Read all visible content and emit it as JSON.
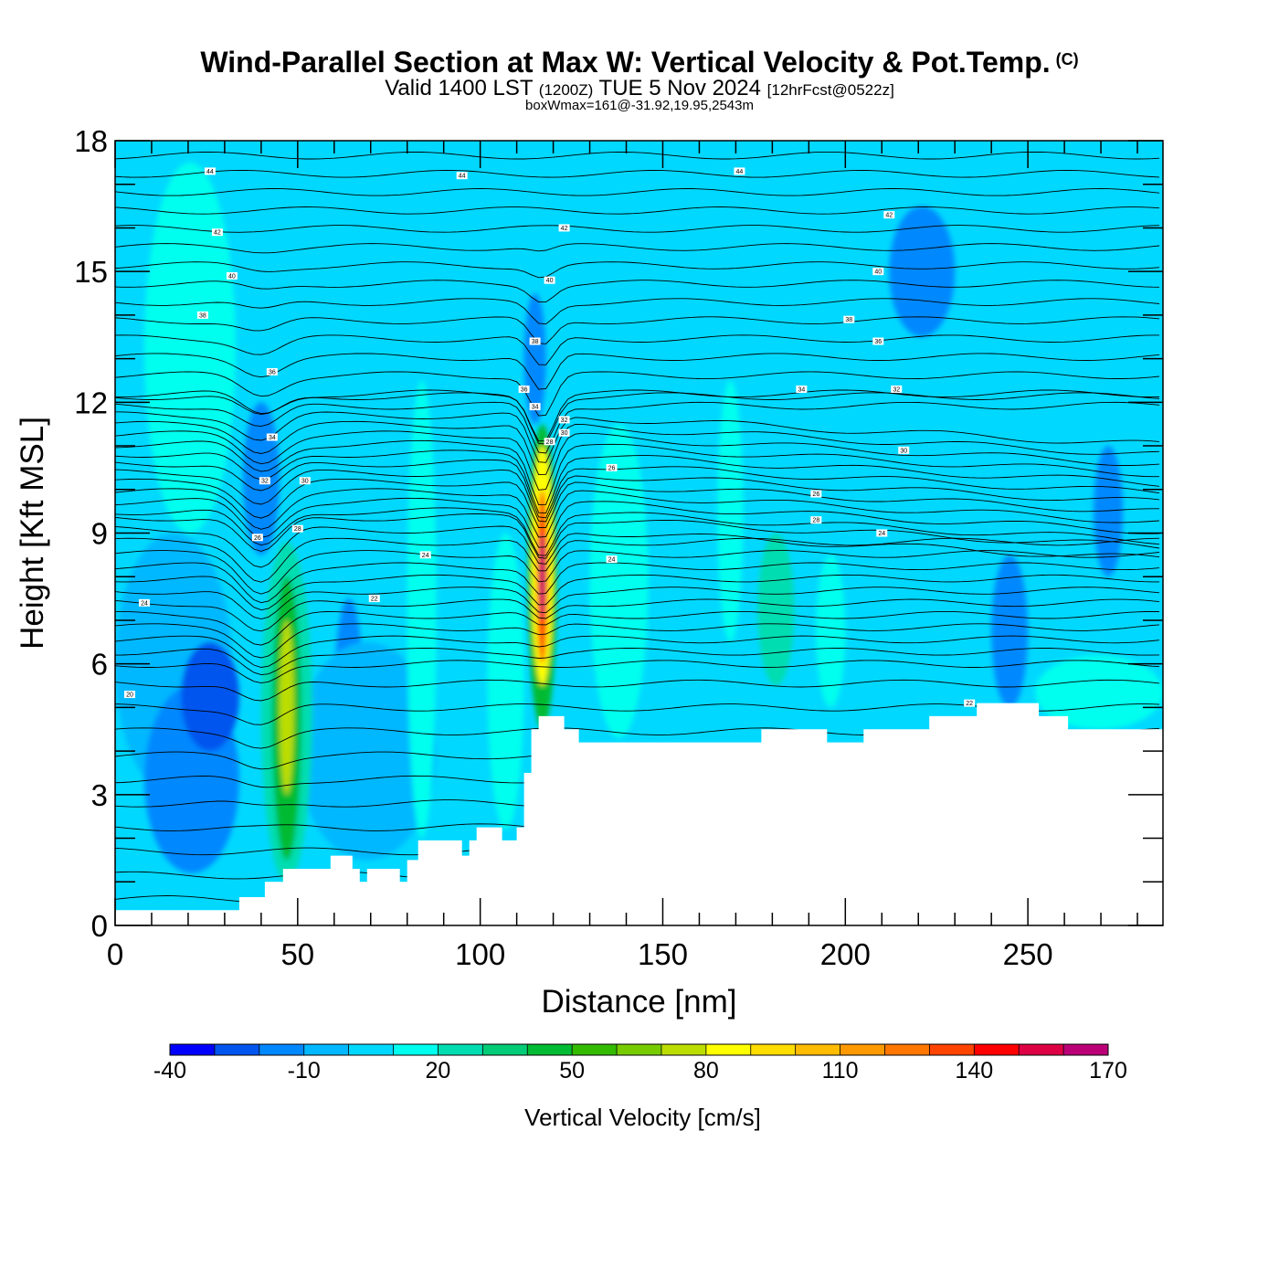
{
  "title": {
    "main": "Wind-Parallel Section at Max W: Vertical Velocity & Pot.Temp.",
    "copyright": "(C)",
    "valid_prefix": "Valid 1400 LST",
    "valid_utc": "(1200Z)",
    "valid_date": "TUE 5 Nov 2024",
    "forecast": "[12hrFcst@0522z]",
    "box_wmax": "boxWmax=161@-31.92,19.95,2543m"
  },
  "chart_data": {
    "type": "heatmap",
    "xlabel": "Distance [nm]",
    "ylabel": "Height [Kft MSL]",
    "xlim": [
      0,
      287
    ],
    "ylim": [
      0,
      18
    ],
    "x_ticks": [
      0,
      50,
      100,
      150,
      200,
      250
    ],
    "x_tick_labels": [
      "0",
      "50",
      "100",
      "150",
      "200",
      "250"
    ],
    "y_ticks": [
      0,
      3,
      6,
      9,
      12,
      15,
      18
    ],
    "y_tick_labels": [
      "0",
      "3",
      "6",
      "9",
      "12",
      "15",
      "18"
    ],
    "background_w": 0,
    "vertical_velocity_features": [
      {
        "x": [
          0,
          32
        ],
        "z": [
          3.0,
          9.0
        ],
        "w": -10
      },
      {
        "x": [
          8,
          34
        ],
        "z": [
          1.2,
          5.5
        ],
        "w": -20
      },
      {
        "x": [
          18,
          34
        ],
        "z": [
          4.0,
          6.5
        ],
        "w": -30
      },
      {
        "x": [
          35,
          45
        ],
        "z": [
          8.5,
          12.0
        ],
        "w": -20
      },
      {
        "x": [
          60,
          68
        ],
        "z": [
          3.0,
          7.5
        ],
        "w": -20
      },
      {
        "x": [
          50,
          88
        ],
        "z": [
          1.5,
          6.5
        ],
        "w": -10
      },
      {
        "x": [
          40,
          54
        ],
        "z": [
          1.0,
          8.8
        ],
        "w": 20
      },
      {
        "x": [
          43,
          51
        ],
        "z": [
          1.5,
          8.0
        ],
        "w": 40
      },
      {
        "x": [
          45,
          49
        ],
        "z": [
          3.0,
          7.0
        ],
        "w": 70
      },
      {
        "x": [
          8,
          33
        ],
        "z": [
          9.0,
          17.5
        ],
        "w": 10
      },
      {
        "x": [
          80,
          88
        ],
        "z": [
          2.0,
          12.5
        ],
        "w": 10
      },
      {
        "x": [
          102,
          112
        ],
        "z": [
          2.2,
          9.0
        ],
        "w": 10
      },
      {
        "x": [
          112,
          118
        ],
        "z": [
          11.5,
          14.5
        ],
        "w": -20
      },
      {
        "x": [
          113,
          121
        ],
        "z": [
          4.5,
          11.5
        ],
        "w": 40
      },
      {
        "x": [
          114,
          120
        ],
        "z": [
          5.5,
          11.0
        ],
        "w": 80
      },
      {
        "x": [
          115.5,
          118.5
        ],
        "z": [
          6.0,
          10.0
        ],
        "w": 130
      },
      {
        "x": [
          116.3,
          117.7
        ],
        "z": [
          7.0,
          9.0
        ],
        "w": 161
      },
      {
        "x": [
          130,
          146
        ],
        "z": [
          4.3,
          11.5
        ],
        "w": 10
      },
      {
        "x": [
          165,
          172
        ],
        "z": [
          6.5,
          12.5
        ],
        "w": 10
      },
      {
        "x": [
          176,
          186
        ],
        "z": [
          5.5,
          9.0
        ],
        "w": 20
      },
      {
        "x": [
          192,
          200
        ],
        "z": [
          5.0,
          8.5
        ],
        "w": 10
      },
      {
        "x": [
          212,
          230
        ],
        "z": [
          13.5,
          16.5
        ],
        "w": -20
      },
      {
        "x": [
          240,
          250
        ],
        "z": [
          5.0,
          8.5
        ],
        "w": -20
      },
      {
        "x": [
          268,
          276
        ],
        "z": [
          8.0,
          11.0
        ],
        "w": -20
      },
      {
        "x": [
          252,
          287
        ],
        "z": [
          4.5,
          6.2
        ],
        "w": 10
      }
    ],
    "pot_temp_contour_labels": [
      {
        "x": 4,
        "z": 5.3,
        "text": "20"
      },
      {
        "x": 8,
        "z": 7.4,
        "text": "24"
      },
      {
        "x": 85,
        "z": 8.5,
        "text": "24"
      },
      {
        "x": 136,
        "z": 10.5,
        "text": "26"
      },
      {
        "x": 71,
        "z": 7.5,
        "text": "22"
      },
      {
        "x": 39,
        "z": 8.9,
        "text": "26"
      },
      {
        "x": 50,
        "z": 9.1,
        "text": "28"
      },
      {
        "x": 41,
        "z": 10.2,
        "text": "32"
      },
      {
        "x": 52,
        "z": 10.2,
        "text": "30"
      },
      {
        "x": 43,
        "z": 11.2,
        "text": "34"
      },
      {
        "x": 43,
        "z": 12.7,
        "text": "36"
      },
      {
        "x": 24,
        "z": 14.0,
        "text": "38"
      },
      {
        "x": 32,
        "z": 14.9,
        "text": "40"
      },
      {
        "x": 28,
        "z": 15.9,
        "text": "42"
      },
      {
        "x": 26,
        "z": 17.3,
        "text": "44"
      },
      {
        "x": 95,
        "z": 17.2,
        "text": "44"
      },
      {
        "x": 171,
        "z": 17.3,
        "text": "44"
      },
      {
        "x": 123,
        "z": 16.0,
        "text": "42"
      },
      {
        "x": 212,
        "z": 16.3,
        "text": "42"
      },
      {
        "x": 119,
        "z": 14.8,
        "text": "40"
      },
      {
        "x": 209,
        "z": 15.0,
        "text": "40"
      },
      {
        "x": 115,
        "z": 13.4,
        "text": "38"
      },
      {
        "x": 201,
        "z": 13.9,
        "text": "38"
      },
      {
        "x": 209,
        "z": 13.4,
        "text": "36"
      },
      {
        "x": 112,
        "z": 12.3,
        "text": "36"
      },
      {
        "x": 115,
        "z": 11.9,
        "text": "34"
      },
      {
        "x": 188,
        "z": 12.3,
        "text": "34"
      },
      {
        "x": 214,
        "z": 12.3,
        "text": "32"
      },
      {
        "x": 123,
        "z": 11.6,
        "text": "32"
      },
      {
        "x": 123,
        "z": 11.3,
        "text": "30"
      },
      {
        "x": 119,
        "z": 11.1,
        "text": "28"
      },
      {
        "x": 216,
        "z": 10.9,
        "text": "30"
      },
      {
        "x": 192,
        "z": 9.9,
        "text": "26"
      },
      {
        "x": 192,
        "z": 9.3,
        "text": "28"
      },
      {
        "x": 210,
        "z": 9.0,
        "text": "24"
      },
      {
        "x": 136,
        "z": 8.4,
        "text": "24"
      },
      {
        "x": 234,
        "z": 5.1,
        "text": "22"
      }
    ],
    "terrain": [
      [
        0,
        0.35
      ],
      [
        34,
        0.35
      ],
      [
        34,
        0.65
      ],
      [
        41,
        0.65
      ],
      [
        41,
        1.0
      ],
      [
        46,
        1.0
      ],
      [
        46,
        1.3
      ],
      [
        59,
        1.3
      ],
      [
        59,
        1.6
      ],
      [
        65,
        1.6
      ],
      [
        65,
        1.3
      ],
      [
        67,
        1.3
      ],
      [
        67,
        1.0
      ],
      [
        69,
        1.0
      ],
      [
        69,
        1.3
      ],
      [
        78,
        1.3
      ],
      [
        78,
        1.0
      ],
      [
        80,
        1.0
      ],
      [
        80,
        1.5
      ],
      [
        83,
        1.5
      ],
      [
        83,
        1.95
      ],
      [
        95,
        1.95
      ],
      [
        95,
        1.6
      ],
      [
        97,
        1.6
      ],
      [
        97,
        1.95
      ],
      [
        99,
        1.95
      ],
      [
        99,
        2.25
      ],
      [
        106,
        2.25
      ],
      [
        106,
        1.95
      ],
      [
        110,
        1.95
      ],
      [
        110,
        2.25
      ],
      [
        112,
        2.25
      ],
      [
        112,
        3.5
      ],
      [
        114,
        3.5
      ],
      [
        114,
        4.5
      ],
      [
        116,
        4.5
      ],
      [
        116,
        4.8
      ],
      [
        123,
        4.8
      ],
      [
        123,
        4.5
      ],
      [
        127,
        4.5
      ],
      [
        127,
        4.2
      ],
      [
        177,
        4.2
      ],
      [
        177,
        4.5
      ],
      [
        195,
        4.5
      ],
      [
        195,
        4.2
      ],
      [
        205,
        4.2
      ],
      [
        205,
        4.5
      ],
      [
        223,
        4.5
      ],
      [
        223,
        4.8
      ],
      [
        236,
        4.8
      ],
      [
        236,
        5.1
      ],
      [
        253,
        5.1
      ],
      [
        253,
        4.8
      ],
      [
        261,
        4.8
      ],
      [
        261,
        4.5
      ],
      [
        287,
        4.5
      ]
    ],
    "colorbar": {
      "title": "Vertical Velocity [cm/s]",
      "min": -40,
      "max": 170,
      "step": 10,
      "tick_labels": [
        "-40",
        "-10",
        "20",
        "50",
        "80",
        "110",
        "140",
        "170"
      ],
      "colors": [
        "#0000ff",
        "#0055ee",
        "#0088ff",
        "#00b8ff",
        "#00d8ff",
        "#00ffee",
        "#00ddb0",
        "#00cc77",
        "#00bb33",
        "#33bb00",
        "#77cc00",
        "#bbdd00",
        "#ffff00",
        "#ffdd00",
        "#ffbb00",
        "#ff9900",
        "#ff7700",
        "#ff4400",
        "#ff0000",
        "#dd0044",
        "#bb0077"
      ]
    }
  }
}
